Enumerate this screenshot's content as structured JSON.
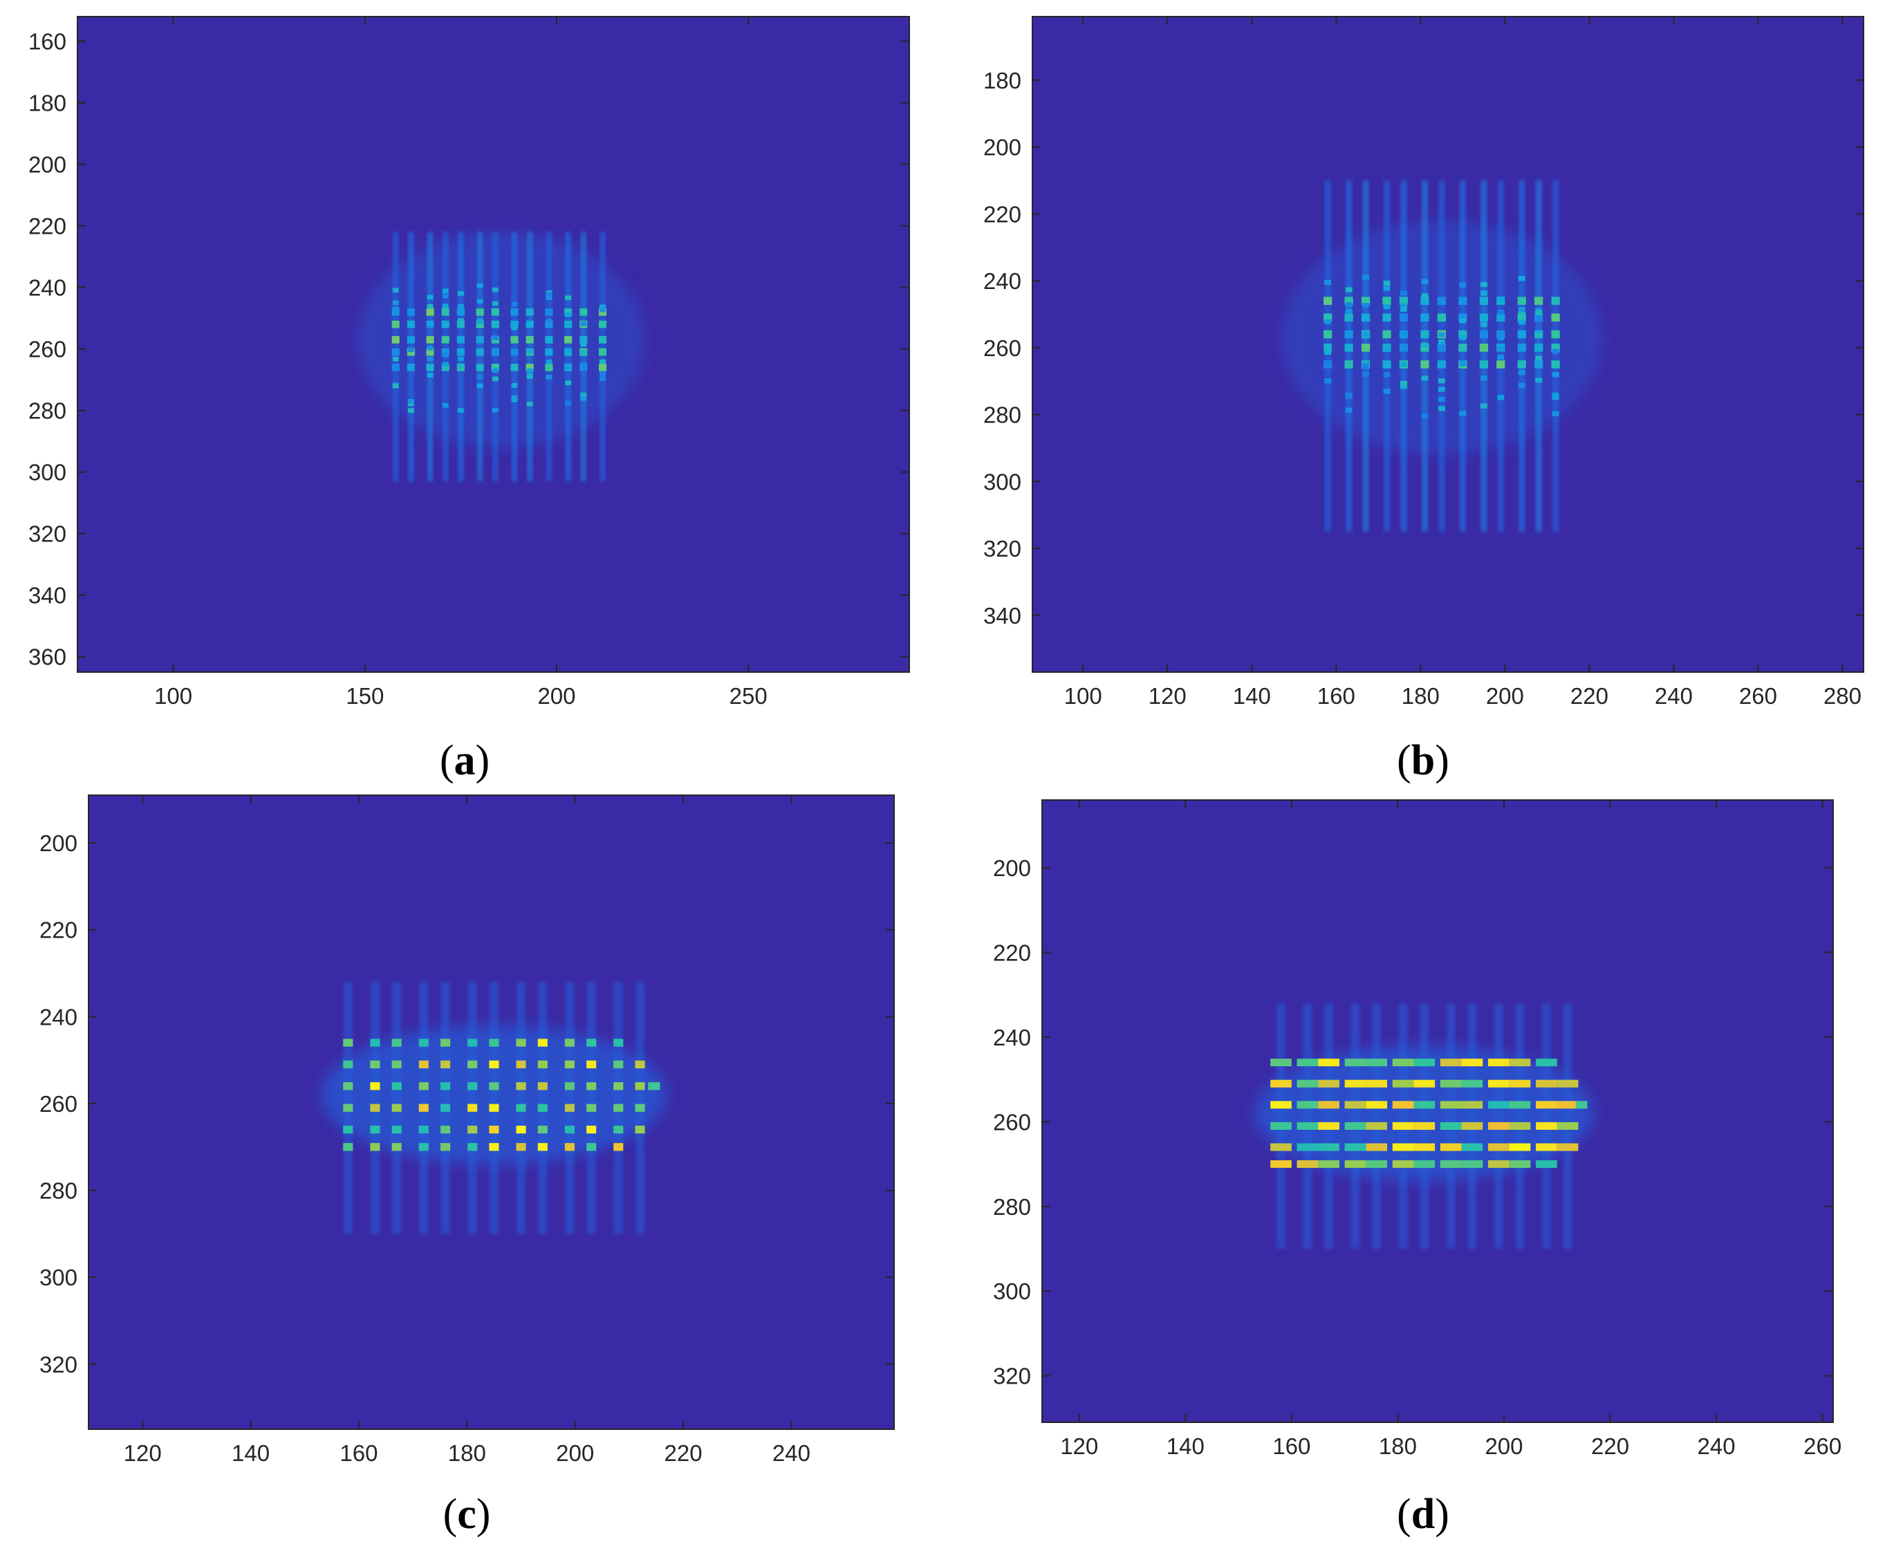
{
  "colors": {
    "background": "#3b2aa5",
    "colormap": "parula",
    "axis": "#262626"
  },
  "chart_data": [
    {
      "type": "heatmap",
      "panel_label": "a",
      "title": "",
      "xlabel": "",
      "ylabel": "",
      "xlim": [
        75,
        292
      ],
      "ylim": [
        365,
        152
      ],
      "y_reversed": true,
      "xticks": [
        100,
        150,
        200,
        250
      ],
      "yticks": [
        160,
        180,
        200,
        220,
        240,
        260,
        280,
        300,
        320,
        340,
        360
      ],
      "grid": false,
      "pattern": "vertical fringe stripes with bright speckle, no distinct spot grid",
      "pattern_x_range": [
        158,
        213
      ],
      "pattern_y_range": [
        222,
        303
      ],
      "stripe_x": [
        158,
        162,
        167,
        171,
        175,
        180,
        184,
        189,
        193,
        198,
        203,
        207,
        212
      ],
      "bright_rows_y": [
        248,
        252,
        257,
        261,
        266
      ],
      "peak_intensity": 0.75
    },
    {
      "type": "heatmap",
      "panel_label": "b",
      "title": "",
      "xlabel": "",
      "ylabel": "",
      "xlim": [
        88,
        285
      ],
      "ylim": [
        357,
        161
      ],
      "y_reversed": true,
      "xticks": [
        100,
        120,
        140,
        160,
        180,
        200,
        220,
        240,
        260,
        280
      ],
      "yticks": [
        180,
        200,
        220,
        240,
        260,
        280,
        300,
        320,
        340
      ],
      "grid": false,
      "pattern": "vertical fringe stripes with bright speckle, no distinct spot grid",
      "pattern_x_range": [
        157,
        213
      ],
      "pattern_y_range": [
        210,
        315
      ],
      "stripe_x": [
        158,
        163,
        167,
        172,
        176,
        181,
        185,
        190,
        195,
        199,
        204,
        208,
        212
      ],
      "bright_rows_y": [
        246,
        251,
        256,
        260,
        265
      ],
      "peak_intensity": 0.7
    },
    {
      "type": "heatmap",
      "panel_label": "c",
      "title": "",
      "xlabel": "",
      "ylabel": "",
      "xlim": [
        110,
        259
      ],
      "ylim": [
        335,
        189
      ],
      "y_reversed": true,
      "xticks": [
        120,
        140,
        160,
        180,
        200,
        220,
        240
      ],
      "yticks": [
        200,
        220,
        240,
        260,
        280,
        300,
        320
      ],
      "grid": false,
      "pattern": "grid of bright focal spots with faint vertical streaks",
      "spot_columns_x": [
        158,
        163,
        167,
        172,
        176,
        181,
        185,
        190,
        194,
        199,
        203,
        208,
        212
      ],
      "spot_rows_y": [
        246,
        251,
        256,
        261,
        266,
        270
      ],
      "peak_intensity": 1.0
    },
    {
      "type": "heatmap",
      "panel_label": "d",
      "title": "",
      "xlabel": "",
      "ylabel": "",
      "xlim": [
        113,
        262
      ],
      "ylim": [
        331,
        184
      ],
      "y_reversed": true,
      "xticks": [
        120,
        140,
        160,
        180,
        200,
        220,
        240,
        260
      ],
      "yticks": [
        200,
        220,
        240,
        260,
        280,
        300,
        320
      ],
      "grid": false,
      "pattern": "grid of elongated bright spots (horizontal bars) with faint vertical streaks",
      "spot_columns_x": [
        158,
        163,
        167,
        172,
        176,
        181,
        185,
        190,
        194,
        199,
        203,
        208,
        212
      ],
      "spot_rows_y": [
        246,
        251,
        256,
        261,
        266,
        270
      ],
      "peak_intensity": 1.0
    }
  ]
}
